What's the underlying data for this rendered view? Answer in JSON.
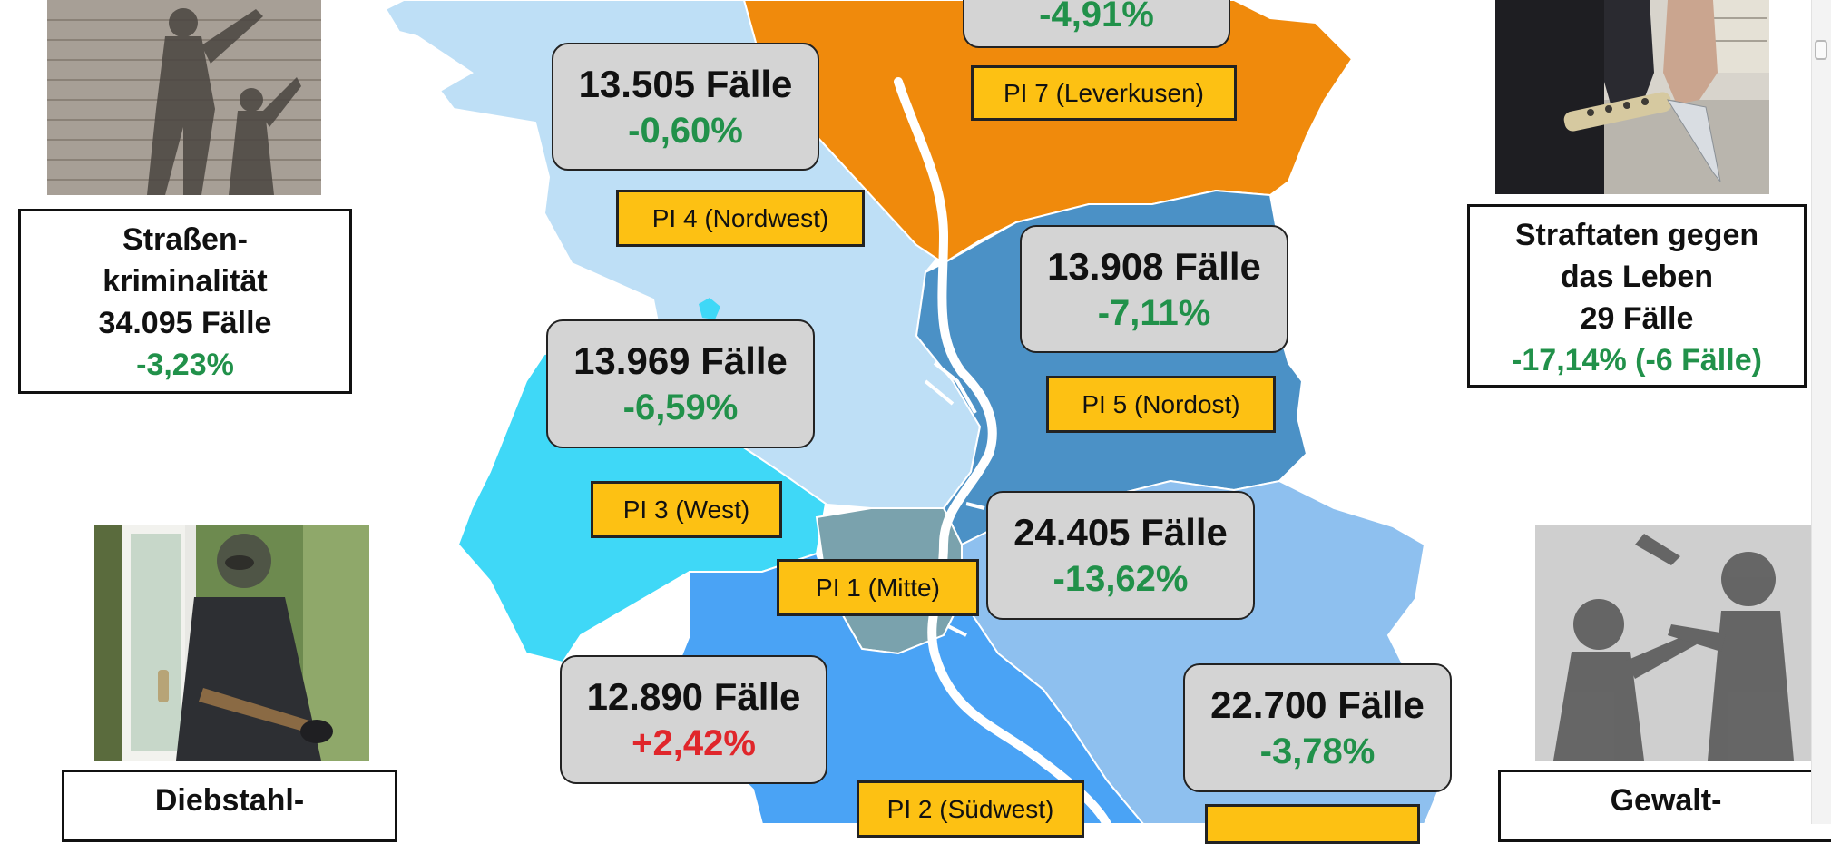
{
  "regions": [
    {
      "id": "pi4",
      "label": "PI 4 (Nordwest)",
      "cases": "13.505 Fälle",
      "change": "-0,60%",
      "trend": "down",
      "color": "#bedff6"
    },
    {
      "id": "pi7",
      "label": "PI 7 (Leverkusen)",
      "cases": "",
      "change": "-4,91%",
      "trend": "down",
      "color": "#f08a0c"
    },
    {
      "id": "pi5",
      "label": "PI 5 (Nordost)",
      "cases": "13.908 Fälle",
      "change": "-7,11%",
      "trend": "down",
      "color": "#4b91c6"
    },
    {
      "id": "pi3",
      "label": "PI 3 (West)",
      "cases": "13.969 Fälle",
      "change": "-6,59%",
      "trend": "down",
      "color": "#3fd8f7"
    },
    {
      "id": "pi1",
      "label": "PI 1 (Mitte)",
      "cases": "24.405 Fälle",
      "change": "-13,62%",
      "trend": "down",
      "color": "#7aa2ad"
    },
    {
      "id": "pi2",
      "label": "PI 2 (Südwest)",
      "cases": "12.890 Fälle",
      "change": "+2,42%",
      "trend": "up",
      "color": "#4aa3f5"
    },
    {
      "id": "pi6",
      "label": "",
      "cases": "22.700 Fälle",
      "change": "-3,78%",
      "trend": "down",
      "color": "#8ec0ef"
    }
  ],
  "categories": {
    "strassen": {
      "line1": "Straßen-",
      "line2": "kriminalität",
      "line3": "34.095 Fälle",
      "change": "-3,23%"
    },
    "leben": {
      "line1": "Straftaten gegen",
      "line2": "das Leben",
      "line3": "29 Fälle",
      "change": "-17,14% (-6 Fälle)"
    },
    "diebstahl": {
      "line1": "Diebstahl-"
    },
    "gewalt": {
      "line1": "Gewalt-"
    }
  },
  "colors": {
    "accent_label": "#fdc113",
    "positive_change": "#21914a",
    "negative_change": "#e0262b",
    "river": "#ffffff"
  }
}
